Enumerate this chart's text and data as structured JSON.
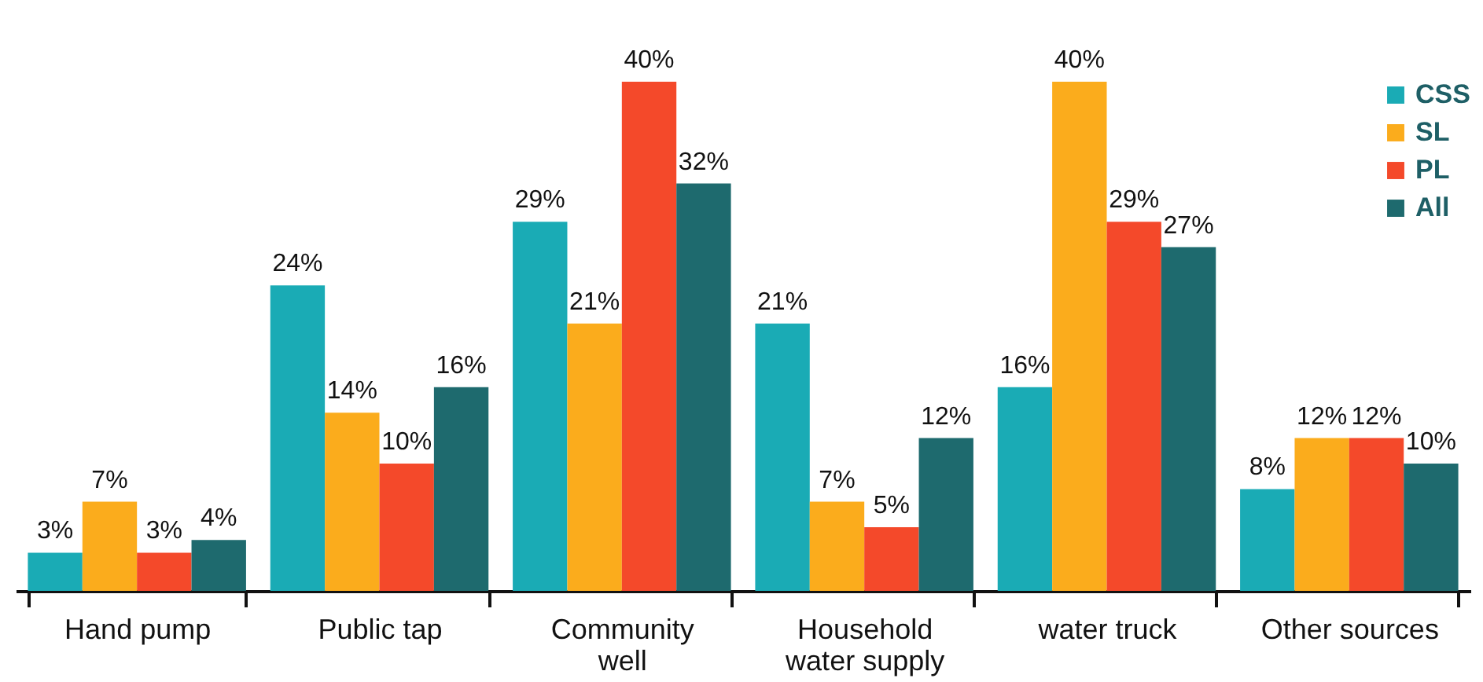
{
  "chart_data": {
    "type": "bar",
    "categories": [
      "Hand pump",
      "Public tap",
      "Community well",
      "Household water supply",
      "water truck",
      "Other sources"
    ],
    "series": [
      {
        "name": "CSS",
        "color": "#1aabb5",
        "values": [
          3,
          24,
          29,
          21,
          16,
          8
        ],
        "value_labels": [
          "3%",
          "24%",
          "29%",
          "21%",
          "16%",
          "8%"
        ]
      },
      {
        "name": "SL",
        "color": "#fbac1c",
        "values": [
          7,
          14,
          21,
          7,
          40,
          12
        ],
        "value_labels": [
          "7%",
          "14%",
          "21%",
          "7%",
          "40%",
          "12%"
        ]
      },
      {
        "name": "PL",
        "color": "#f4492a",
        "values": [
          3,
          10,
          40,
          5,
          29,
          12
        ],
        "value_labels": [
          "3%",
          "10%",
          "40%",
          "5%",
          "29%",
          "12%"
        ]
      },
      {
        "name": "All",
        "color": "#1e6a6e",
        "values": [
          4,
          16,
          32,
          12,
          27,
          10
        ],
        "value_labels": [
          "4%",
          "16%",
          "32%",
          "12%",
          "27%",
          "10%"
        ]
      }
    ],
    "legend": "top right"
  }
}
